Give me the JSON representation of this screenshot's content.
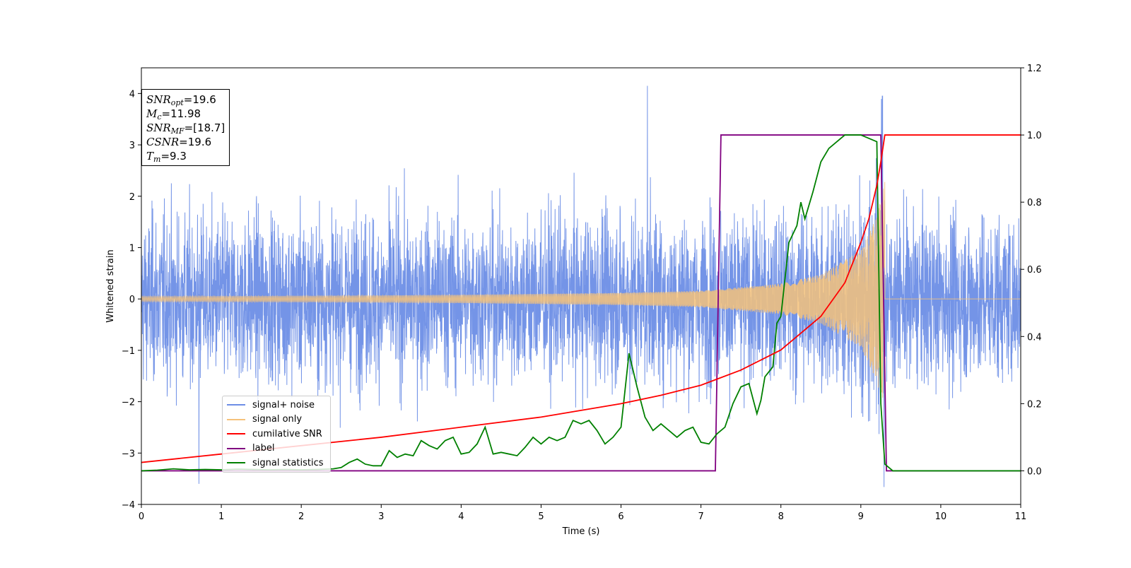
{
  "chart_data": {
    "type": "line",
    "xlabel": "Time (s)",
    "ylabel": "Whitened strain",
    "xlim": [
      0,
      11
    ],
    "ylim": [
      -4,
      4.5
    ],
    "ylim_right": [
      -0.1,
      1.2
    ],
    "x_ticks": [
      "0",
      "1",
      "2",
      "3",
      "4",
      "5",
      "6",
      "7",
      "8",
      "9",
      "10",
      "11"
    ],
    "y_ticks": [
      "4",
      "3",
      "2",
      "1",
      "0",
      "−1",
      "−2",
      "−3",
      "−4"
    ],
    "y_right_ticks": [
      "1.2",
      "1.0",
      "0.8",
      "0.6",
      "0.4",
      "0.2",
      "0.0"
    ],
    "legend_position": "lower-left",
    "info": {
      "snr_opt": {
        "label": "SNR",
        "sub": "opt",
        "value": "=19.6"
      },
      "mc": {
        "label": "M",
        "sub": "c",
        "value": "=11.98"
      },
      "snr_mf": {
        "label": "SNR",
        "sub": "MF",
        "value": "=[18.7]"
      },
      "csnr": {
        "label": "CSNR",
        "value": "=19.6"
      },
      "tm": {
        "label": "T",
        "sub": "m",
        "value": "=9.3"
      }
    },
    "series": [
      {
        "name": "signal+ noise",
        "color": "#6d8ee6",
        "axis": "left",
        "description_values": "noise band approx std 0.85 with peak 4.15 at x≈6.33 and spikes near 9.27"
      },
      {
        "name": "signal only",
        "color": "#f5c27a",
        "axis": "left",
        "envelope": {
          "x": [
            0,
            2,
            4,
            6,
            7,
            8,
            8.5,
            9,
            9.2,
            9.3
          ],
          "amplitude": [
            0.05,
            0.06,
            0.08,
            0.12,
            0.16,
            0.3,
            0.48,
            0.95,
            1.6,
            2.3
          ]
        }
      },
      {
        "name": "cumilative SNR",
        "color": "#ff0000",
        "axis": "right",
        "x": [
          0,
          1,
          2,
          3,
          4,
          5,
          6,
          6.5,
          7,
          7.5,
          8,
          8.5,
          8.8,
          9,
          9.1,
          9.2,
          9.25,
          9.3,
          11
        ],
        "values": [
          0.025,
          0.05,
          0.075,
          0.1,
          0.13,
          0.16,
          0.2,
          0.225,
          0.255,
          0.3,
          0.36,
          0.46,
          0.56,
          0.68,
          0.75,
          0.85,
          0.92,
          1.0,
          1.0
        ]
      },
      {
        "name": "label",
        "color": "#800080",
        "axis": "right",
        "x": [
          0,
          7.18,
          7.25,
          9.25,
          9.32,
          11
        ],
        "values": [
          0,
          0,
          1,
          1,
          0,
          0
        ]
      },
      {
        "name": "signal statistics",
        "color": "#008000",
        "axis": "right",
        "x": [
          0,
          0.2,
          0.4,
          0.6,
          0.8,
          1,
          1.2,
          1.4,
          1.6,
          1.8,
          2,
          2.2,
          2.4,
          2.5,
          2.6,
          2.7,
          2.8,
          2.9,
          3,
          3.1,
          3.2,
          3.3,
          3.4,
          3.5,
          3.6,
          3.7,
          3.8,
          3.9,
          4,
          4.1,
          4.2,
          4.3,
          4.4,
          4.5,
          4.6,
          4.7,
          4.8,
          4.9,
          5,
          5.1,
          5.2,
          5.3,
          5.4,
          5.5,
          5.6,
          5.7,
          5.8,
          5.9,
          6,
          6.1,
          6.2,
          6.3,
          6.4,
          6.5,
          6.6,
          6.7,
          6.8,
          6.9,
          7,
          7.1,
          7.2,
          7.3,
          7.4,
          7.5,
          7.6,
          7.7,
          7.75,
          7.8,
          7.9,
          7.95,
          8,
          8.1,
          8.2,
          8.25,
          8.3,
          8.4,
          8.5,
          8.6,
          8.7,
          8.8,
          8.9,
          9,
          9.1,
          9.2,
          9.25,
          9.3,
          9.35,
          9.4,
          9.5,
          11
        ],
        "values": [
          0,
          0.002,
          0.006,
          0.003,
          0.004,
          0.003,
          0.005,
          0.004,
          0.003,
          0.004,
          0.003,
          0.004,
          0.006,
          0.01,
          0.025,
          0.035,
          0.02,
          0.015,
          0.015,
          0.06,
          0.04,
          0.05,
          0.045,
          0.09,
          0.075,
          0.065,
          0.09,
          0.1,
          0.05,
          0.055,
          0.08,
          0.13,
          0.05,
          0.055,
          0.05,
          0.045,
          0.07,
          0.1,
          0.08,
          0.1,
          0.09,
          0.1,
          0.15,
          0.14,
          0.15,
          0.12,
          0.08,
          0.1,
          0.13,
          0.35,
          0.25,
          0.16,
          0.12,
          0.14,
          0.12,
          0.1,
          0.12,
          0.13,
          0.085,
          0.08,
          0.11,
          0.13,
          0.2,
          0.25,
          0.26,
          0.17,
          0.21,
          0.28,
          0.31,
          0.44,
          0.46,
          0.68,
          0.73,
          0.8,
          0.75,
          0.83,
          0.92,
          0.96,
          0.98,
          1.0,
          1.0,
          1.0,
          0.99,
          0.98,
          0.2,
          0.02,
          0.01,
          0.0,
          0.0,
          0.0
        ]
      }
    ]
  }
}
